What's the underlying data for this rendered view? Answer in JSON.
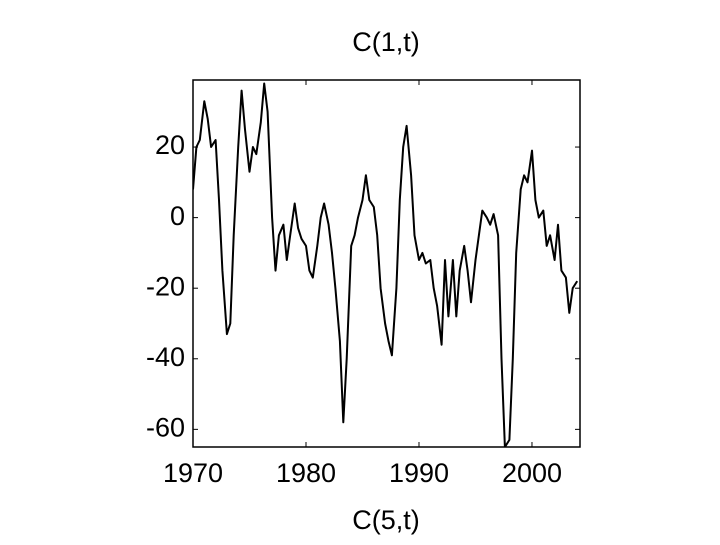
{
  "chart_data": {
    "type": "line",
    "title": "C(1,t)",
    "x_label": "C(5,t)",
    "color": "#000000",
    "x": [
      1970.0,
      1970.3,
      1970.6,
      1971.0,
      1971.3,
      1971.6,
      1972.0,
      1972.3,
      1972.6,
      1973.0,
      1973.3,
      1973.6,
      1974.0,
      1974.3,
      1974.6,
      1975.0,
      1975.3,
      1975.6,
      1976.0,
      1976.3,
      1976.6,
      1977.0,
      1977.3,
      1977.6,
      1978.0,
      1978.3,
      1978.6,
      1979.0,
      1979.3,
      1979.6,
      1980.0,
      1980.3,
      1980.6,
      1981.0,
      1981.3,
      1981.6,
      1982.0,
      1982.3,
      1982.6,
      1983.0,
      1983.3,
      1983.6,
      1984.0,
      1984.3,
      1984.6,
      1985.0,
      1985.3,
      1985.6,
      1986.0,
      1986.3,
      1986.6,
      1987.0,
      1987.3,
      1987.6,
      1988.0,
      1988.3,
      1988.6,
      1988.9,
      1989.3,
      1989.6,
      1990.0,
      1990.3,
      1990.6,
      1991.0,
      1991.3,
      1991.6,
      1992.0,
      1992.3,
      1992.6,
      1993.0,
      1993.3,
      1993.6,
      1994.0,
      1994.3,
      1994.6,
      1995.0,
      1995.3,
      1995.6,
      1996.0,
      1996.3,
      1996.6,
      1997.0,
      1997.3,
      1997.6,
      1998.0,
      1998.3,
      1998.6,
      1999.0,
      1999.3,
      1999.6,
      2000.0,
      2000.3,
      2000.6,
      2001.0,
      2001.3,
      2001.6,
      2002.0,
      2002.3,
      2002.6,
      2003.0,
      2003.3,
      2003.6,
      2004.0
    ],
    "values": [
      8,
      20,
      22,
      33,
      28,
      20,
      22,
      5,
      -15,
      -33,
      -30,
      -5,
      20,
      36,
      25,
      13,
      20,
      18,
      27,
      38,
      30,
      0,
      -15,
      -5,
      -2,
      -12,
      -5,
      4,
      -3,
      -6,
      -8,
      -15,
      -17,
      -8,
      0,
      4,
      -2,
      -10,
      -20,
      -35,
      -58,
      -40,
      -8,
      -5,
      0,
      5,
      12,
      5,
      3,
      -5,
      -20,
      -30,
      -35,
      -39,
      -20,
      5,
      20,
      26,
      12,
      -5,
      -12,
      -10,
      -13,
      -12,
      -20,
      -25,
      -36,
      -12,
      -28,
      -12,
      -28,
      -15,
      -8,
      -15,
      -24,
      -12,
      -5,
      2,
      0,
      -2,
      1,
      -5,
      -40,
      -65,
      -63,
      -40,
      -10,
      8,
      12,
      10,
      19,
      5,
      0,
      2,
      -8,
      -5,
      -12,
      -2,
      -15,
      -17,
      -27,
      -20,
      -18
    ],
    "xlim": [
      1970,
      2004.25
    ],
    "ylim": [
      -65,
      39
    ],
    "xticks": [
      1970,
      1980,
      1990,
      2000
    ],
    "yticks": [
      -60,
      -40,
      -20,
      0,
      20
    ]
  }
}
